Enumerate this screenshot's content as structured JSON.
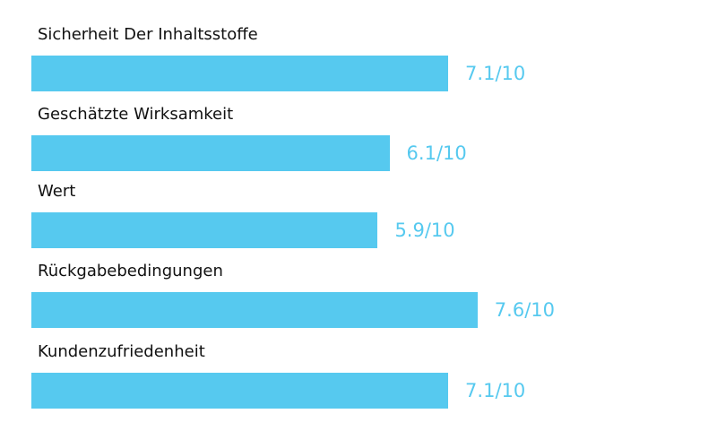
{
  "chart_data": {
    "type": "bar",
    "orientation": "horizontal",
    "categories": [
      "Sicherheit Der Inhaltsstoffe",
      "Geschätzte Wirksamkeit",
      "Wert",
      "Rückgabebedingungen",
      "Kundenzufriedenheit"
    ],
    "values": [
      7.1,
      6.1,
      5.9,
      7.6,
      7.1
    ],
    "value_labels": [
      "7.1/10",
      "6.1/10",
      "5.9/10",
      "7.6/10",
      "7.1/10"
    ],
    "xlim": [
      0,
      10
    ],
    "title": "",
    "xlabel": "",
    "ylabel": "",
    "grid": false,
    "bar_color": "#56c9ef"
  }
}
